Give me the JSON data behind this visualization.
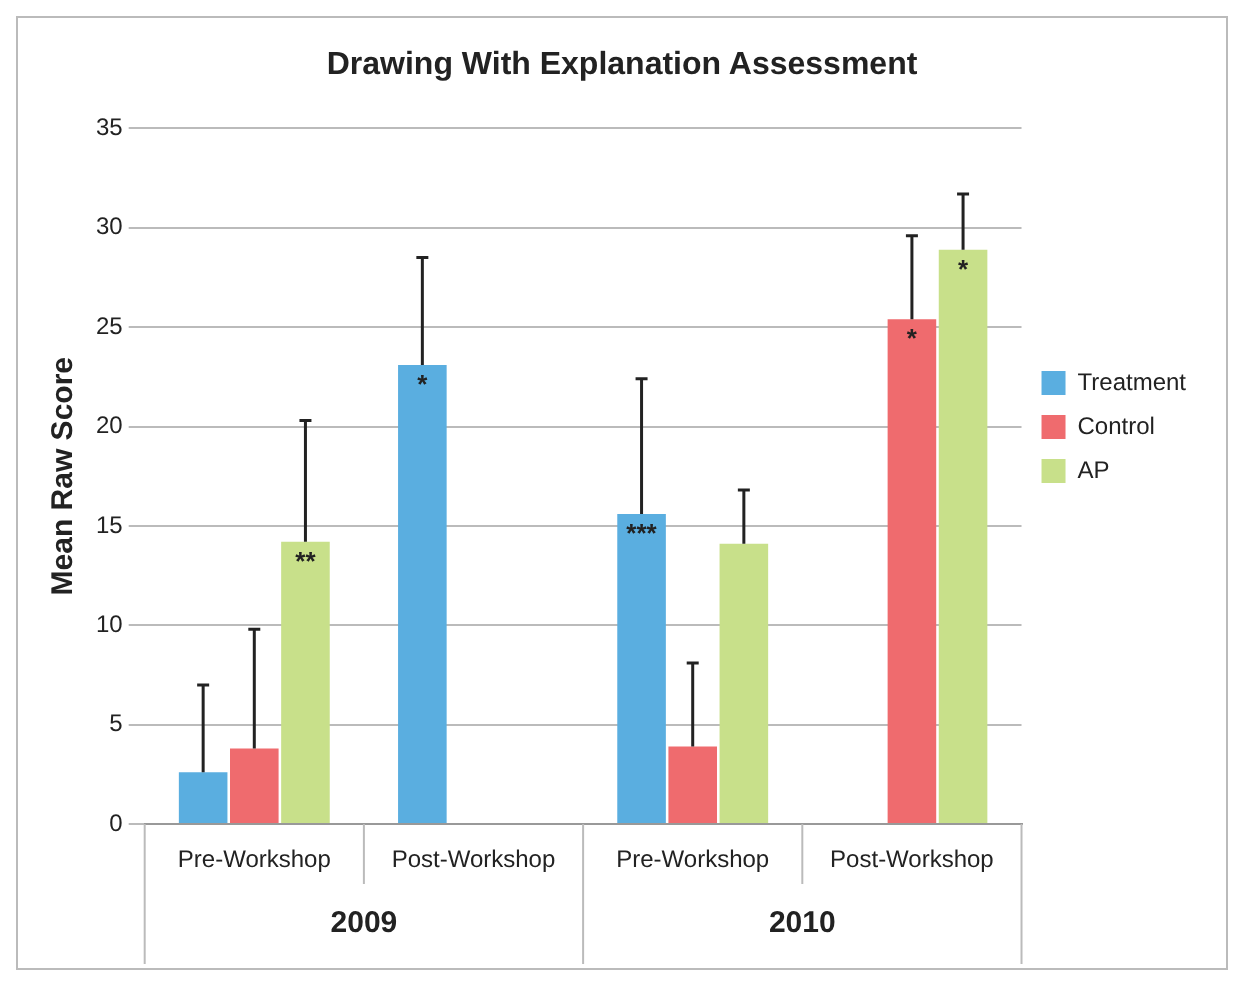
{
  "chart_data": {
    "type": "bar",
    "title": "Drawing With Explanation Assessment",
    "ylabel": "Mean Raw Score",
    "categories": [
      "Pre-Workshop",
      "Post-Workshop",
      "Pre-Workshop",
      "Post-Workshop"
    ],
    "annotations": [
      "2009",
      "2010"
    ],
    "series": [
      {
        "name": "Treatment",
        "color": "#5aaee0",
        "values": [
          2.6,
          23.1,
          15.6,
          null
        ],
        "errors": [
          [
            2.6,
            7.0
          ],
          [
            23.1,
            28.5
          ],
          [
            15.6,
            22.4
          ],
          null
        ],
        "value_labels": [
          null,
          "*",
          "***",
          null
        ]
      },
      {
        "name": "Control",
        "color": "#ef6b6e",
        "values": [
          3.8,
          null,
          3.9,
          25.4
        ],
        "errors": [
          [
            3.8,
            9.8
          ],
          null,
          [
            3.9,
            8.1
          ],
          [
            25.4,
            29.6
          ]
        ],
        "value_labels": [
          null,
          null,
          null,
          "*"
        ]
      },
      {
        "name": "AP",
        "color": "#c8e08a",
        "values": [
          14.2,
          null,
          14.1,
          28.9
        ],
        "errors": [
          [
            14.2,
            20.3
          ],
          null,
          [
            14.1,
            16.8
          ],
          [
            28.9,
            31.7
          ]
        ],
        "value_labels": [
          "**",
          null,
          null,
          "*"
        ]
      }
    ],
    "ylim": [
      0,
      35
    ],
    "yticks": [
      0,
      5,
      10,
      15,
      20,
      25,
      30,
      35
    ],
    "grid": "y",
    "legend": "right"
  }
}
